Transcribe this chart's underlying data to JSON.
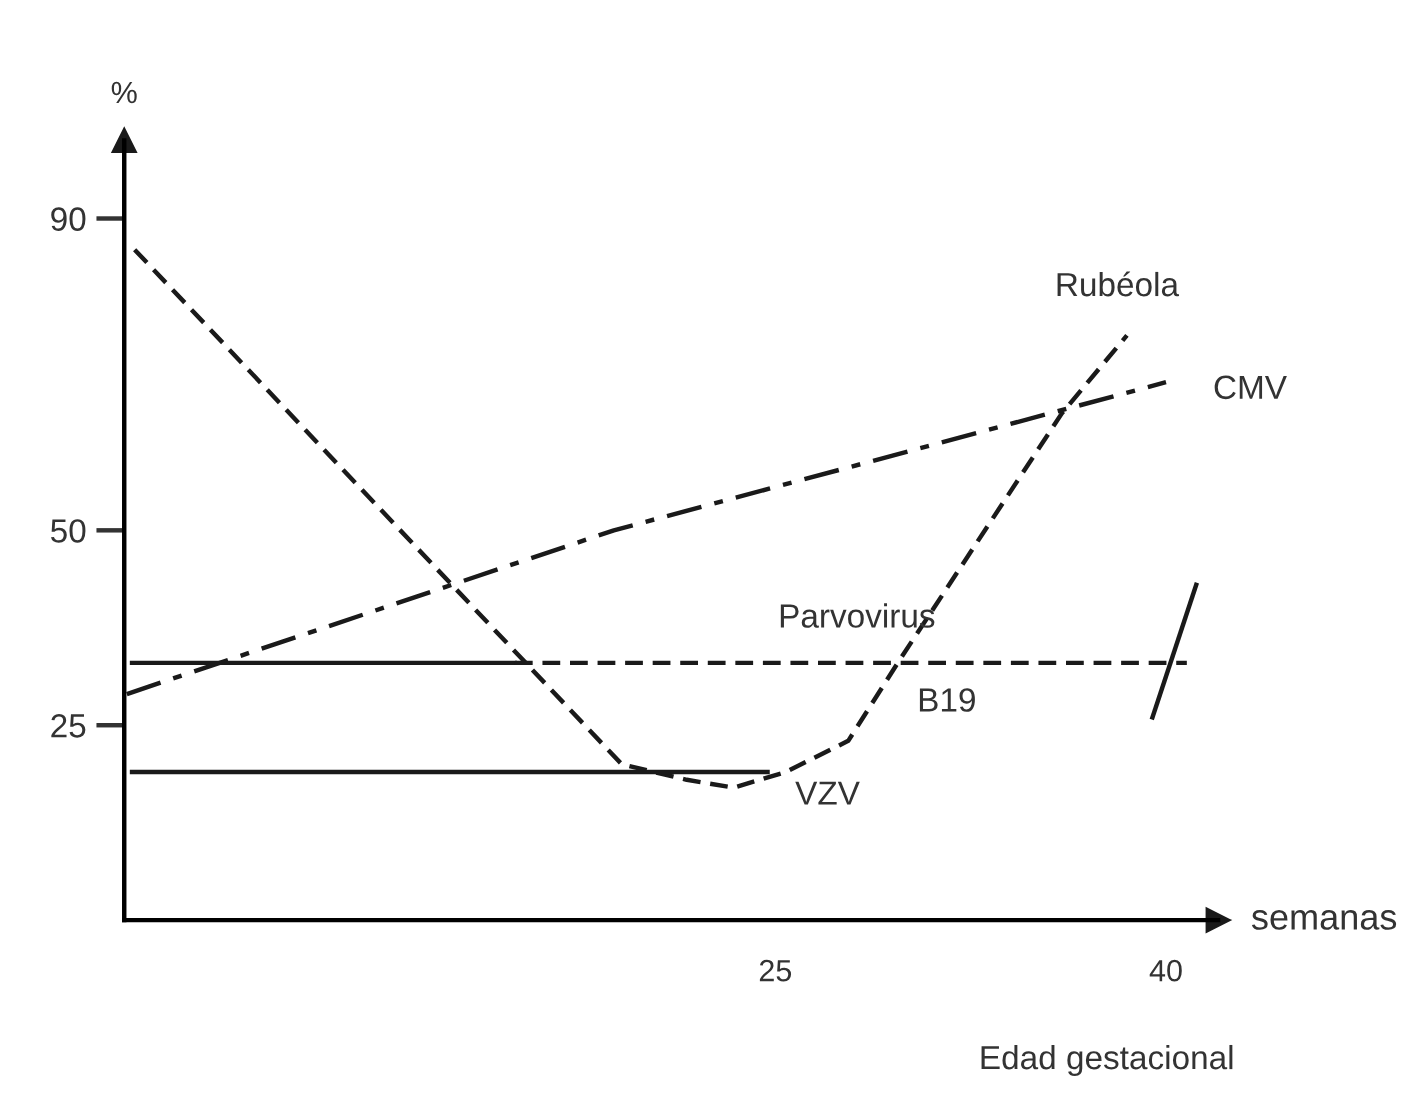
{
  "chart_data": {
    "type": "line",
    "xlabel": "semanas",
    "ylabel": "%",
    "xlim": [
      0,
      42
    ],
    "ylim": [
      0,
      100
    ],
    "xticks": [
      25,
      40
    ],
    "yticks": [
      25,
      50,
      90
    ],
    "grid": false,
    "marker": "none",
    "series": [
      {
        "name": "Rubéola",
        "color": "#1a1a1a",
        "line_style": "dashed",
        "x": [
          0.4,
          19.1,
          21.6,
          23.4,
          25.4,
          27.8,
          29.7,
          36.0,
          38.5
        ],
        "values": [
          86,
          20,
          18,
          17,
          19,
          23,
          33,
          65,
          75
        ]
      },
      {
        "name": "CMV",
        "color": "#1a1a1a",
        "line_style": "dashdot",
        "x": [
          0.1,
          18.8,
          40
        ],
        "values": [
          29,
          50,
          69
        ]
      },
      {
        "color": "#1a1a1a",
        "line_style": "solid",
        "x": [
          0.3,
          15
        ],
        "values": [
          33,
          33
        ]
      },
      {
        "name": "Parvovirus B19",
        "color": "#1a1a1a",
        "line_style": "dashed",
        "x": [
          15,
          40.8
        ],
        "values": [
          33,
          33
        ]
      },
      {
        "name": "VZV",
        "color": "#1a1a1a",
        "line_style": "solid",
        "x": [
          0.3,
          24.7
        ],
        "values": [
          19,
          19
        ]
      }
    ],
    "annotations": [
      "Edad gestacional"
    ]
  }
}
